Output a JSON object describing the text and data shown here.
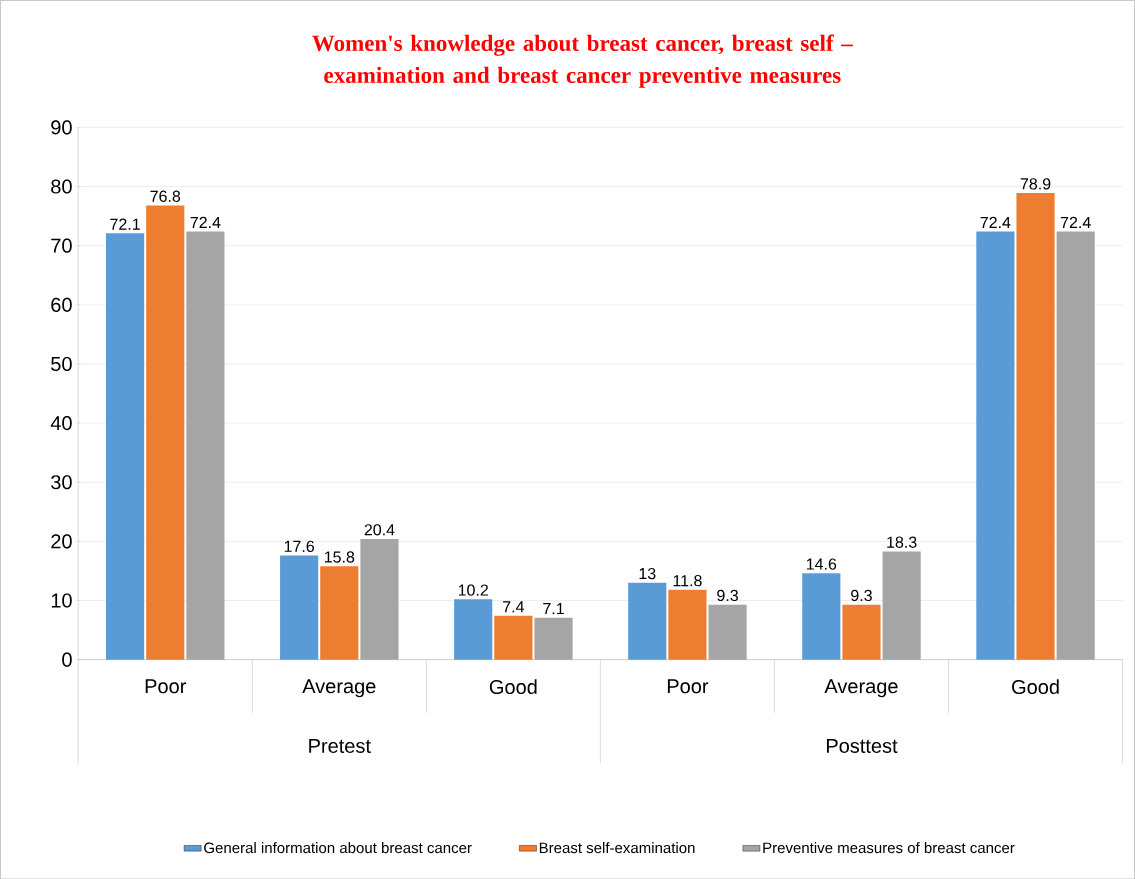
{
  "chart_data": {
    "type": "bar",
    "title": "Women's knowledge about breast cancer, breast self –examination and breast cancer preventive measures",
    "categories": [
      "Poor",
      "Average",
      "Good",
      "Poor",
      "Average",
      "Good"
    ],
    "annotations": [
      "Pretest",
      "Posttest"
    ],
    "series": [
      {
        "name": "General information about breast cancer",
        "color": "#5b9bd5",
        "values": [
          72.1,
          17.6,
          10.2,
          13,
          14.6,
          72.4
        ]
      },
      {
        "name": "Breast self-examination",
        "color": "#ed7d31",
        "values": [
          76.8,
          15.8,
          7.4,
          11.8,
          9.3,
          78.9
        ]
      },
      {
        "name": "Preventive measures of breast cancer",
        "color": "#a5a5a5",
        "values": [
          72.4,
          20.4,
          7.1,
          9.3,
          18.3,
          72.4
        ]
      }
    ],
    "ylim": [
      0,
      90
    ],
    "yticks": [
      0,
      10,
      20,
      30,
      40,
      50,
      60,
      70,
      80,
      90
    ],
    "grid": "y",
    "legend": "bottom",
    "data_labels": true
  }
}
